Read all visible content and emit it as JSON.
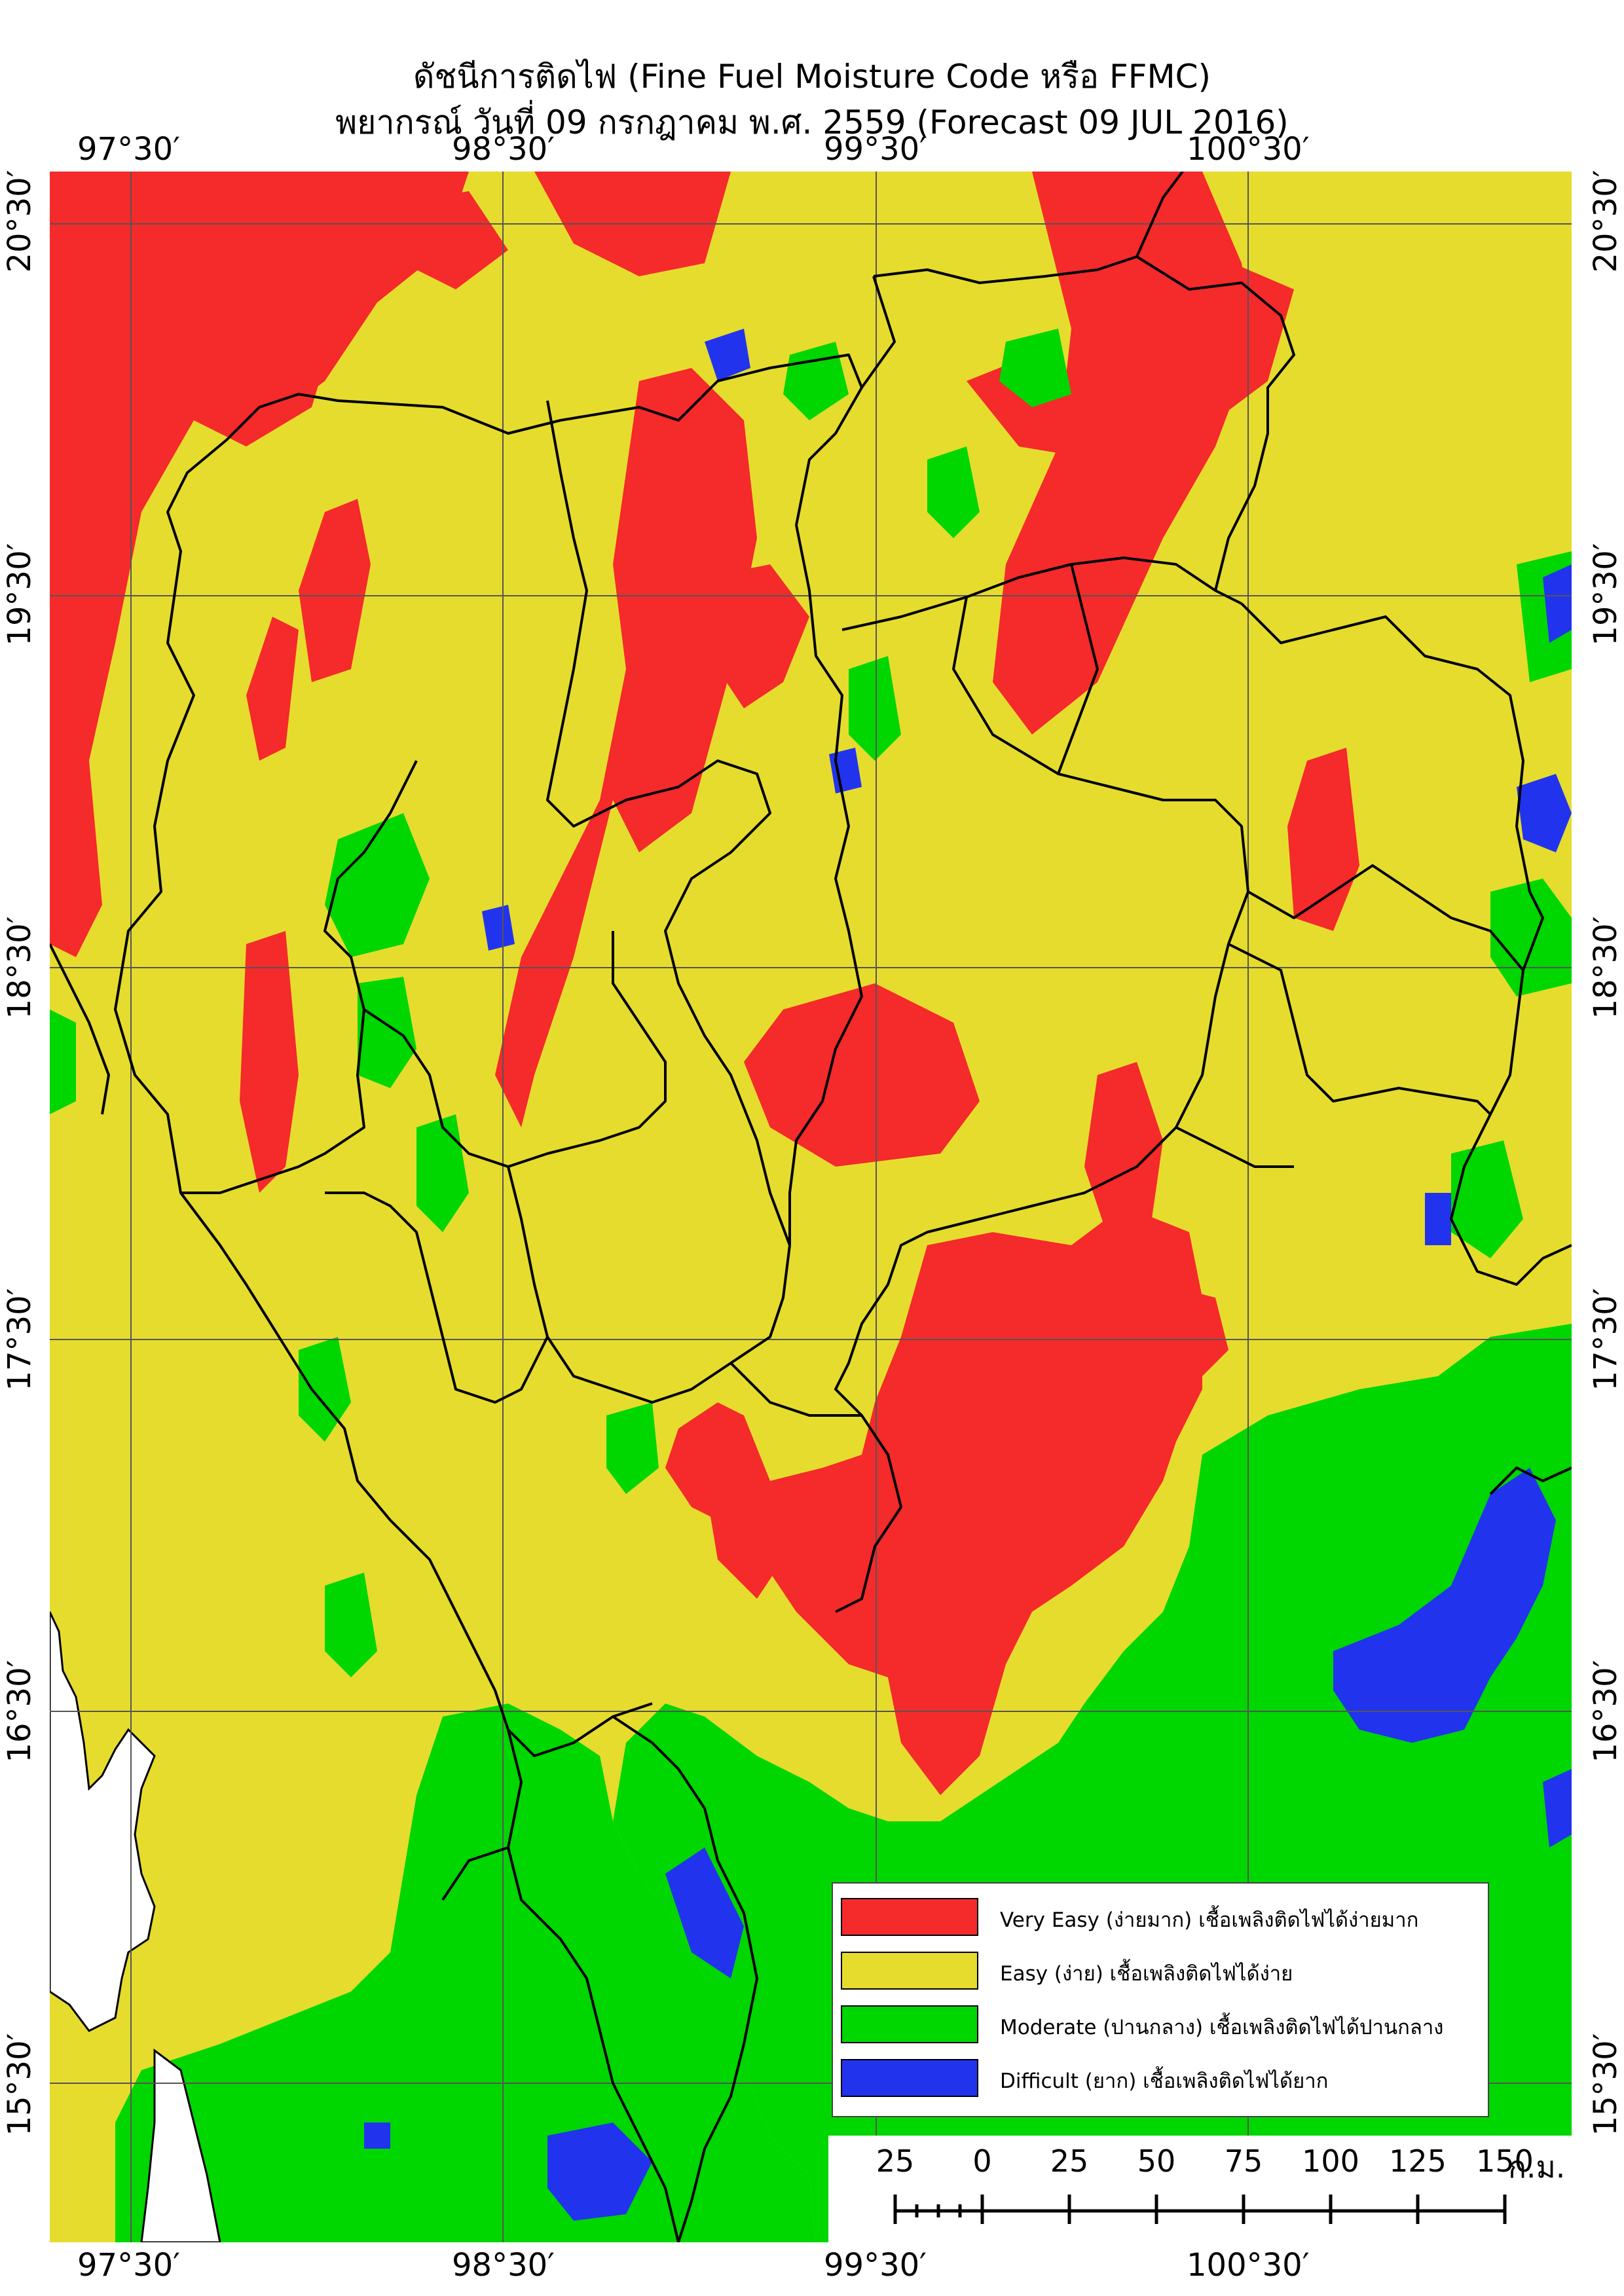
{
  "title": "ดัชนีการติดไฟ (Fine Fuel Moisture Code หรือ FFMC)",
  "subtitle": "พยากรณ์ วันที่ 09 กรกฎาคม พ.ศ. 2559 (Forecast 09 JUL 2016)",
  "lon_ticks": [
    "97°30′",
    "98°30′",
    "99°30′",
    "100°30′"
  ],
  "lat_ticks": [
    "20°30′",
    "19°30′",
    "18°30′",
    "17°30′",
    "16°30′",
    "15°30′"
  ],
  "legend": [
    {
      "label": "Very Easy (ง่ายมาก) เชื้อเพลิงติดไฟได้ง่ายมาก",
      "color": "#f42a2b"
    },
    {
      "label": "Easy (ง่าย) เชื้อเพลิงติดไฟได้ง่าย",
      "color": "#e6dc2e"
    },
    {
      "label": "Moderate (ปานกลาง) เชื้อเพลิงติดไฟได้ปานกลาง",
      "color": "#00d600"
    },
    {
      "label": "Difficult (ยาก) เชื้อเพลิงติดไฟได้ยาก",
      "color": "#2233ee"
    }
  ],
  "scale_bar": {
    "labels": [
      "25",
      "0",
      "25",
      "50",
      "75",
      "100",
      "125",
      "150"
    ],
    "unit": "ก.ม."
  },
  "colors": {
    "very_easy": "#f42a2b",
    "easy": "#e6dc2e",
    "moderate": "#00d600",
    "difficult": "#2233ee",
    "sea": "#ffffff"
  }
}
